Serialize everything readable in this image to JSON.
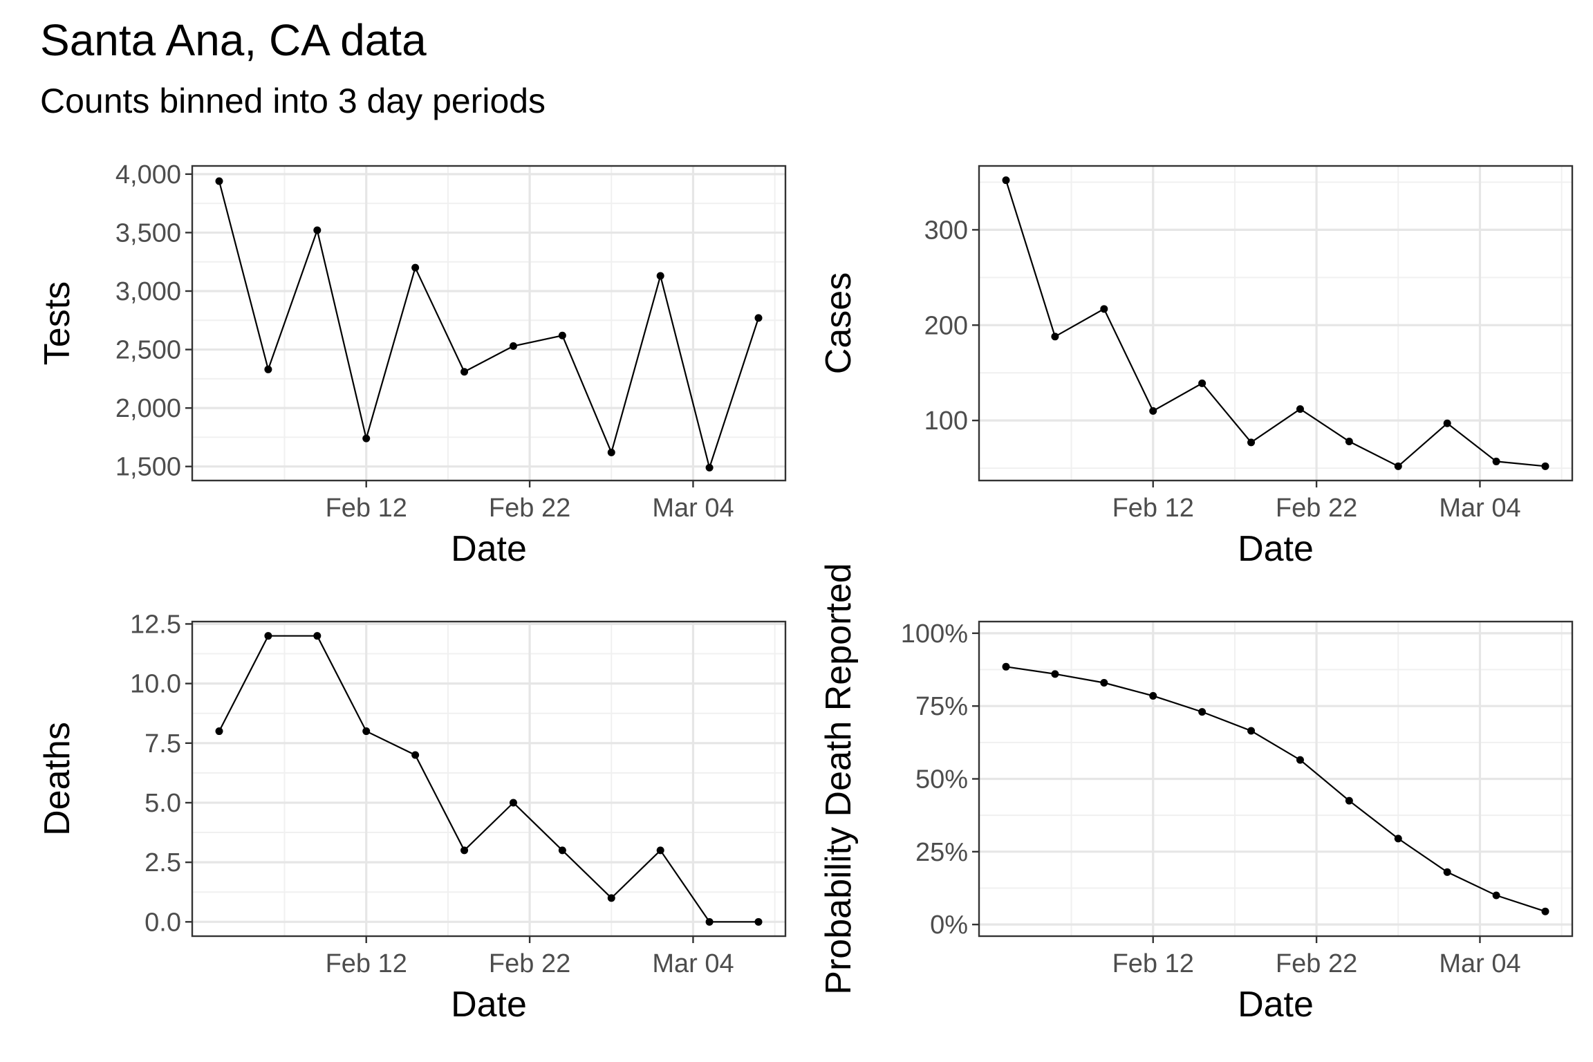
{
  "figure": {
    "title": "Santa Ana, CA data",
    "subtitle": "Counts binned into 3 day periods"
  },
  "chart_data": [
    {
      "type": "line",
      "xlabel": "Date",
      "ylabel": "Tests",
      "x": [
        "Feb 03",
        "Feb 06",
        "Feb 09",
        "Feb 12",
        "Feb 15",
        "Feb 18",
        "Feb 21",
        "Feb 24",
        "Feb 27",
        "Mar 02",
        "Mar 05",
        "Mar 08"
      ],
      "series": [
        {
          "values": [
            3940,
            2330,
            3520,
            1740,
            3200,
            2310,
            2530,
            2620,
            1620,
            3130,
            1490,
            2770
          ]
        }
      ],
      "ylim": [
        1380,
        4070
      ],
      "yticks": [
        1500,
        2000,
        2500,
        3000,
        3500,
        4000
      ],
      "ytick_labels": [
        "1,500",
        "2,000",
        "2,500",
        "3,000",
        "3,500",
        "4,000"
      ],
      "xticks": [
        "Feb 12",
        "Feb 22",
        "Mar 04"
      ],
      "grid": true
    },
    {
      "type": "line",
      "xlabel": "Date",
      "ylabel": "Cases",
      "x": [
        "Feb 03",
        "Feb 06",
        "Feb 09",
        "Feb 12",
        "Feb 15",
        "Feb 18",
        "Feb 21",
        "Feb 24",
        "Feb 27",
        "Mar 02",
        "Mar 05",
        "Mar 08"
      ],
      "series": [
        {
          "values": [
            352,
            188,
            217,
            110,
            139,
            77,
            112,
            78,
            52,
            97,
            57,
            52
          ]
        }
      ],
      "ylim": [
        37,
        367
      ],
      "yticks": [
        100,
        200,
        300
      ],
      "ytick_labels": [
        "100",
        "200",
        "300"
      ],
      "xticks": [
        "Feb 12",
        "Feb 22",
        "Mar 04"
      ],
      "grid": true
    },
    {
      "type": "line",
      "xlabel": "Date",
      "ylabel": "Deaths",
      "x": [
        "Feb 03",
        "Feb 06",
        "Feb 09",
        "Feb 12",
        "Feb 15",
        "Feb 18",
        "Feb 21",
        "Feb 24",
        "Feb 27",
        "Mar 02",
        "Mar 05",
        "Mar 08"
      ],
      "series": [
        {
          "values": [
            8,
            12,
            12,
            8,
            7,
            3,
            5,
            3,
            1,
            3,
            0,
            0
          ]
        }
      ],
      "ylim": [
        -0.6,
        12.6
      ],
      "yticks": [
        0,
        2.5,
        5,
        7.5,
        10,
        12.5
      ],
      "ytick_labels": [
        "0.0",
        "2.5",
        "5.0",
        "7.5",
        "10.0",
        "12.5"
      ],
      "xticks": [
        "Feb 12",
        "Feb 22",
        "Mar 04"
      ],
      "grid": true
    },
    {
      "type": "line",
      "xlabel": "Date",
      "ylabel": "Probability Death Reported",
      "x": [
        "Feb 03",
        "Feb 06",
        "Feb 09",
        "Feb 12",
        "Feb 15",
        "Feb 18",
        "Feb 21",
        "Feb 24",
        "Feb 27",
        "Mar 02",
        "Mar 05",
        "Mar 08"
      ],
      "series": [
        {
          "values": [
            0.885,
            0.86,
            0.83,
            0.785,
            0.73,
            0.665,
            0.565,
            0.425,
            0.295,
            0.18,
            0.1,
            0.045
          ]
        }
      ],
      "ylim": [
        -0.04,
        1.04
      ],
      "yticks": [
        0,
        0.25,
        0.5,
        0.75,
        1.0
      ],
      "ytick_labels": [
        "0%",
        "25%",
        "50%",
        "75%",
        "100%"
      ],
      "xticks": [
        "Feb 12",
        "Feb 22",
        "Mar 04"
      ],
      "grid": true
    }
  ]
}
